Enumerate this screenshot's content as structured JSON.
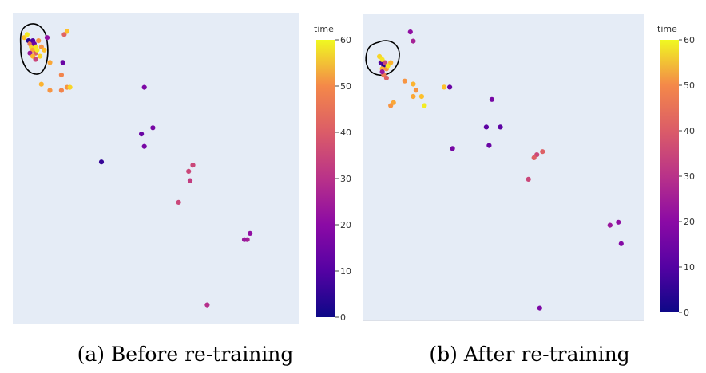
{
  "chart_data": [
    {
      "type": "scatter",
      "caption": "(a) Before re-training",
      "colorbar": {
        "title": "time",
        "min": 0,
        "max": 60,
        "ticks": [
          0,
          10,
          20,
          30,
          40,
          50,
          60
        ]
      },
      "xlim": [
        0,
        100
      ],
      "ylim": [
        0,
        100
      ],
      "grid": false,
      "annotation": "circled cluster (top-left)",
      "points": [
        {
          "x": 4,
          "y": 92,
          "t": 52
        },
        {
          "x": 5,
          "y": 93,
          "t": 58
        },
        {
          "x": 5.5,
          "y": 91,
          "t": 3
        },
        {
          "x": 6,
          "y": 90,
          "t": 40
        },
        {
          "x": 6.5,
          "y": 89,
          "t": 55
        },
        {
          "x": 7,
          "y": 91,
          "t": 8
        },
        {
          "x": 7,
          "y": 88,
          "t": 48
        },
        {
          "x": 7.5,
          "y": 90,
          "t": 12
        },
        {
          "x": 8,
          "y": 89,
          "t": 57
        },
        {
          "x": 8,
          "y": 87,
          "t": 35
        },
        {
          "x": 6,
          "y": 87,
          "t": 20
        },
        {
          "x": 7,
          "y": 86,
          "t": 50
        },
        {
          "x": 8.5,
          "y": 88,
          "t": 58
        },
        {
          "x": 9,
          "y": 91,
          "t": 45
        },
        {
          "x": 8,
          "y": 85,
          "t": 30
        },
        {
          "x": 9.5,
          "y": 86,
          "t": 55
        },
        {
          "x": 10,
          "y": 89,
          "t": 45
        },
        {
          "x": 12,
          "y": 92,
          "t": 18
        },
        {
          "x": 11,
          "y": 88,
          "t": 52
        },
        {
          "x": 13,
          "y": 84,
          "t": 48
        },
        {
          "x": 18,
          "y": 93,
          "t": 36
        },
        {
          "x": 19,
          "y": 94,
          "t": 52
        },
        {
          "x": 17.5,
          "y": 84,
          "t": 12
        },
        {
          "x": 17,
          "y": 80,
          "t": 42
        },
        {
          "x": 10,
          "y": 77,
          "t": 50
        },
        {
          "x": 13,
          "y": 75,
          "t": 45
        },
        {
          "x": 17,
          "y": 75,
          "t": 42
        },
        {
          "x": 19,
          "y": 76,
          "t": 45
        },
        {
          "x": 20,
          "y": 76,
          "t": 55
        },
        {
          "x": 46,
          "y": 76,
          "t": 15
        },
        {
          "x": 45,
          "y": 61,
          "t": 12
        },
        {
          "x": 49,
          "y": 63,
          "t": 14
        },
        {
          "x": 46,
          "y": 57,
          "t": 14
        },
        {
          "x": 31,
          "y": 52,
          "t": 5
        },
        {
          "x": 63,
          "y": 51,
          "t": 30
        },
        {
          "x": 61.5,
          "y": 49,
          "t": 30
        },
        {
          "x": 62,
          "y": 46,
          "t": 28
        },
        {
          "x": 58,
          "y": 39,
          "t": 30
        },
        {
          "x": 83,
          "y": 29,
          "t": 18
        },
        {
          "x": 82,
          "y": 27,
          "t": 22
        },
        {
          "x": 81,
          "y": 27,
          "t": 20
        },
        {
          "x": 68,
          "y": 6,
          "t": 25
        }
      ]
    },
    {
      "type": "scatter",
      "caption": "(b) After re-training",
      "colorbar": {
        "title": "time",
        "min": 0,
        "max": 60,
        "ticks": [
          0,
          10,
          20,
          30,
          40,
          50,
          60
        ]
      },
      "xlim": [
        0,
        100
      ],
      "ylim": [
        0,
        100
      ],
      "grid": false,
      "annotation": "circled cluster (top-left)",
      "points": [
        {
          "x": 6,
          "y": 86,
          "t": 55
        },
        {
          "x": 6.5,
          "y": 84,
          "t": 8
        },
        {
          "x": 7,
          "y": 85,
          "t": 57
        },
        {
          "x": 7.5,
          "y": 83,
          "t": 3
        },
        {
          "x": 7,
          "y": 82,
          "t": 50
        },
        {
          "x": 8,
          "y": 84,
          "t": 30
        },
        {
          "x": 8.5,
          "y": 82,
          "t": 45
        },
        {
          "x": 7.5,
          "y": 80,
          "t": 40
        },
        {
          "x": 9,
          "y": 83,
          "t": 58
        },
        {
          "x": 8.5,
          "y": 79,
          "t": 35
        },
        {
          "x": 10,
          "y": 84,
          "t": 50
        },
        {
          "x": 7,
          "y": 81,
          "t": 20
        },
        {
          "x": 17,
          "y": 94,
          "t": 18
        },
        {
          "x": 18,
          "y": 91,
          "t": 22
        },
        {
          "x": 15,
          "y": 78,
          "t": 45
        },
        {
          "x": 18,
          "y": 77,
          "t": 50
        },
        {
          "x": 19,
          "y": 75,
          "t": 45
        },
        {
          "x": 18,
          "y": 73,
          "t": 48
        },
        {
          "x": 21,
          "y": 73,
          "t": 52
        },
        {
          "x": 10,
          "y": 70,
          "t": 45
        },
        {
          "x": 11,
          "y": 71,
          "t": 48
        },
        {
          "x": 22,
          "y": 70,
          "t": 58
        },
        {
          "x": 29,
          "y": 76,
          "t": 52
        },
        {
          "x": 31,
          "y": 76,
          "t": 12
        },
        {
          "x": 46,
          "y": 72,
          "t": 14
        },
        {
          "x": 44,
          "y": 63,
          "t": 10
        },
        {
          "x": 49,
          "y": 63,
          "t": 10
        },
        {
          "x": 45,
          "y": 57,
          "t": 12
        },
        {
          "x": 32,
          "y": 56,
          "t": 14
        },
        {
          "x": 62,
          "y": 54,
          "t": 30
        },
        {
          "x": 61,
          "y": 53,
          "t": 35
        },
        {
          "x": 64,
          "y": 55,
          "t": 35
        },
        {
          "x": 59,
          "y": 46,
          "t": 30
        },
        {
          "x": 91,
          "y": 32,
          "t": 18
        },
        {
          "x": 88,
          "y": 31,
          "t": 20
        },
        {
          "x": 92,
          "y": 25,
          "t": 16
        },
        {
          "x": 63,
          "y": 4,
          "t": 15
        }
      ]
    }
  ]
}
